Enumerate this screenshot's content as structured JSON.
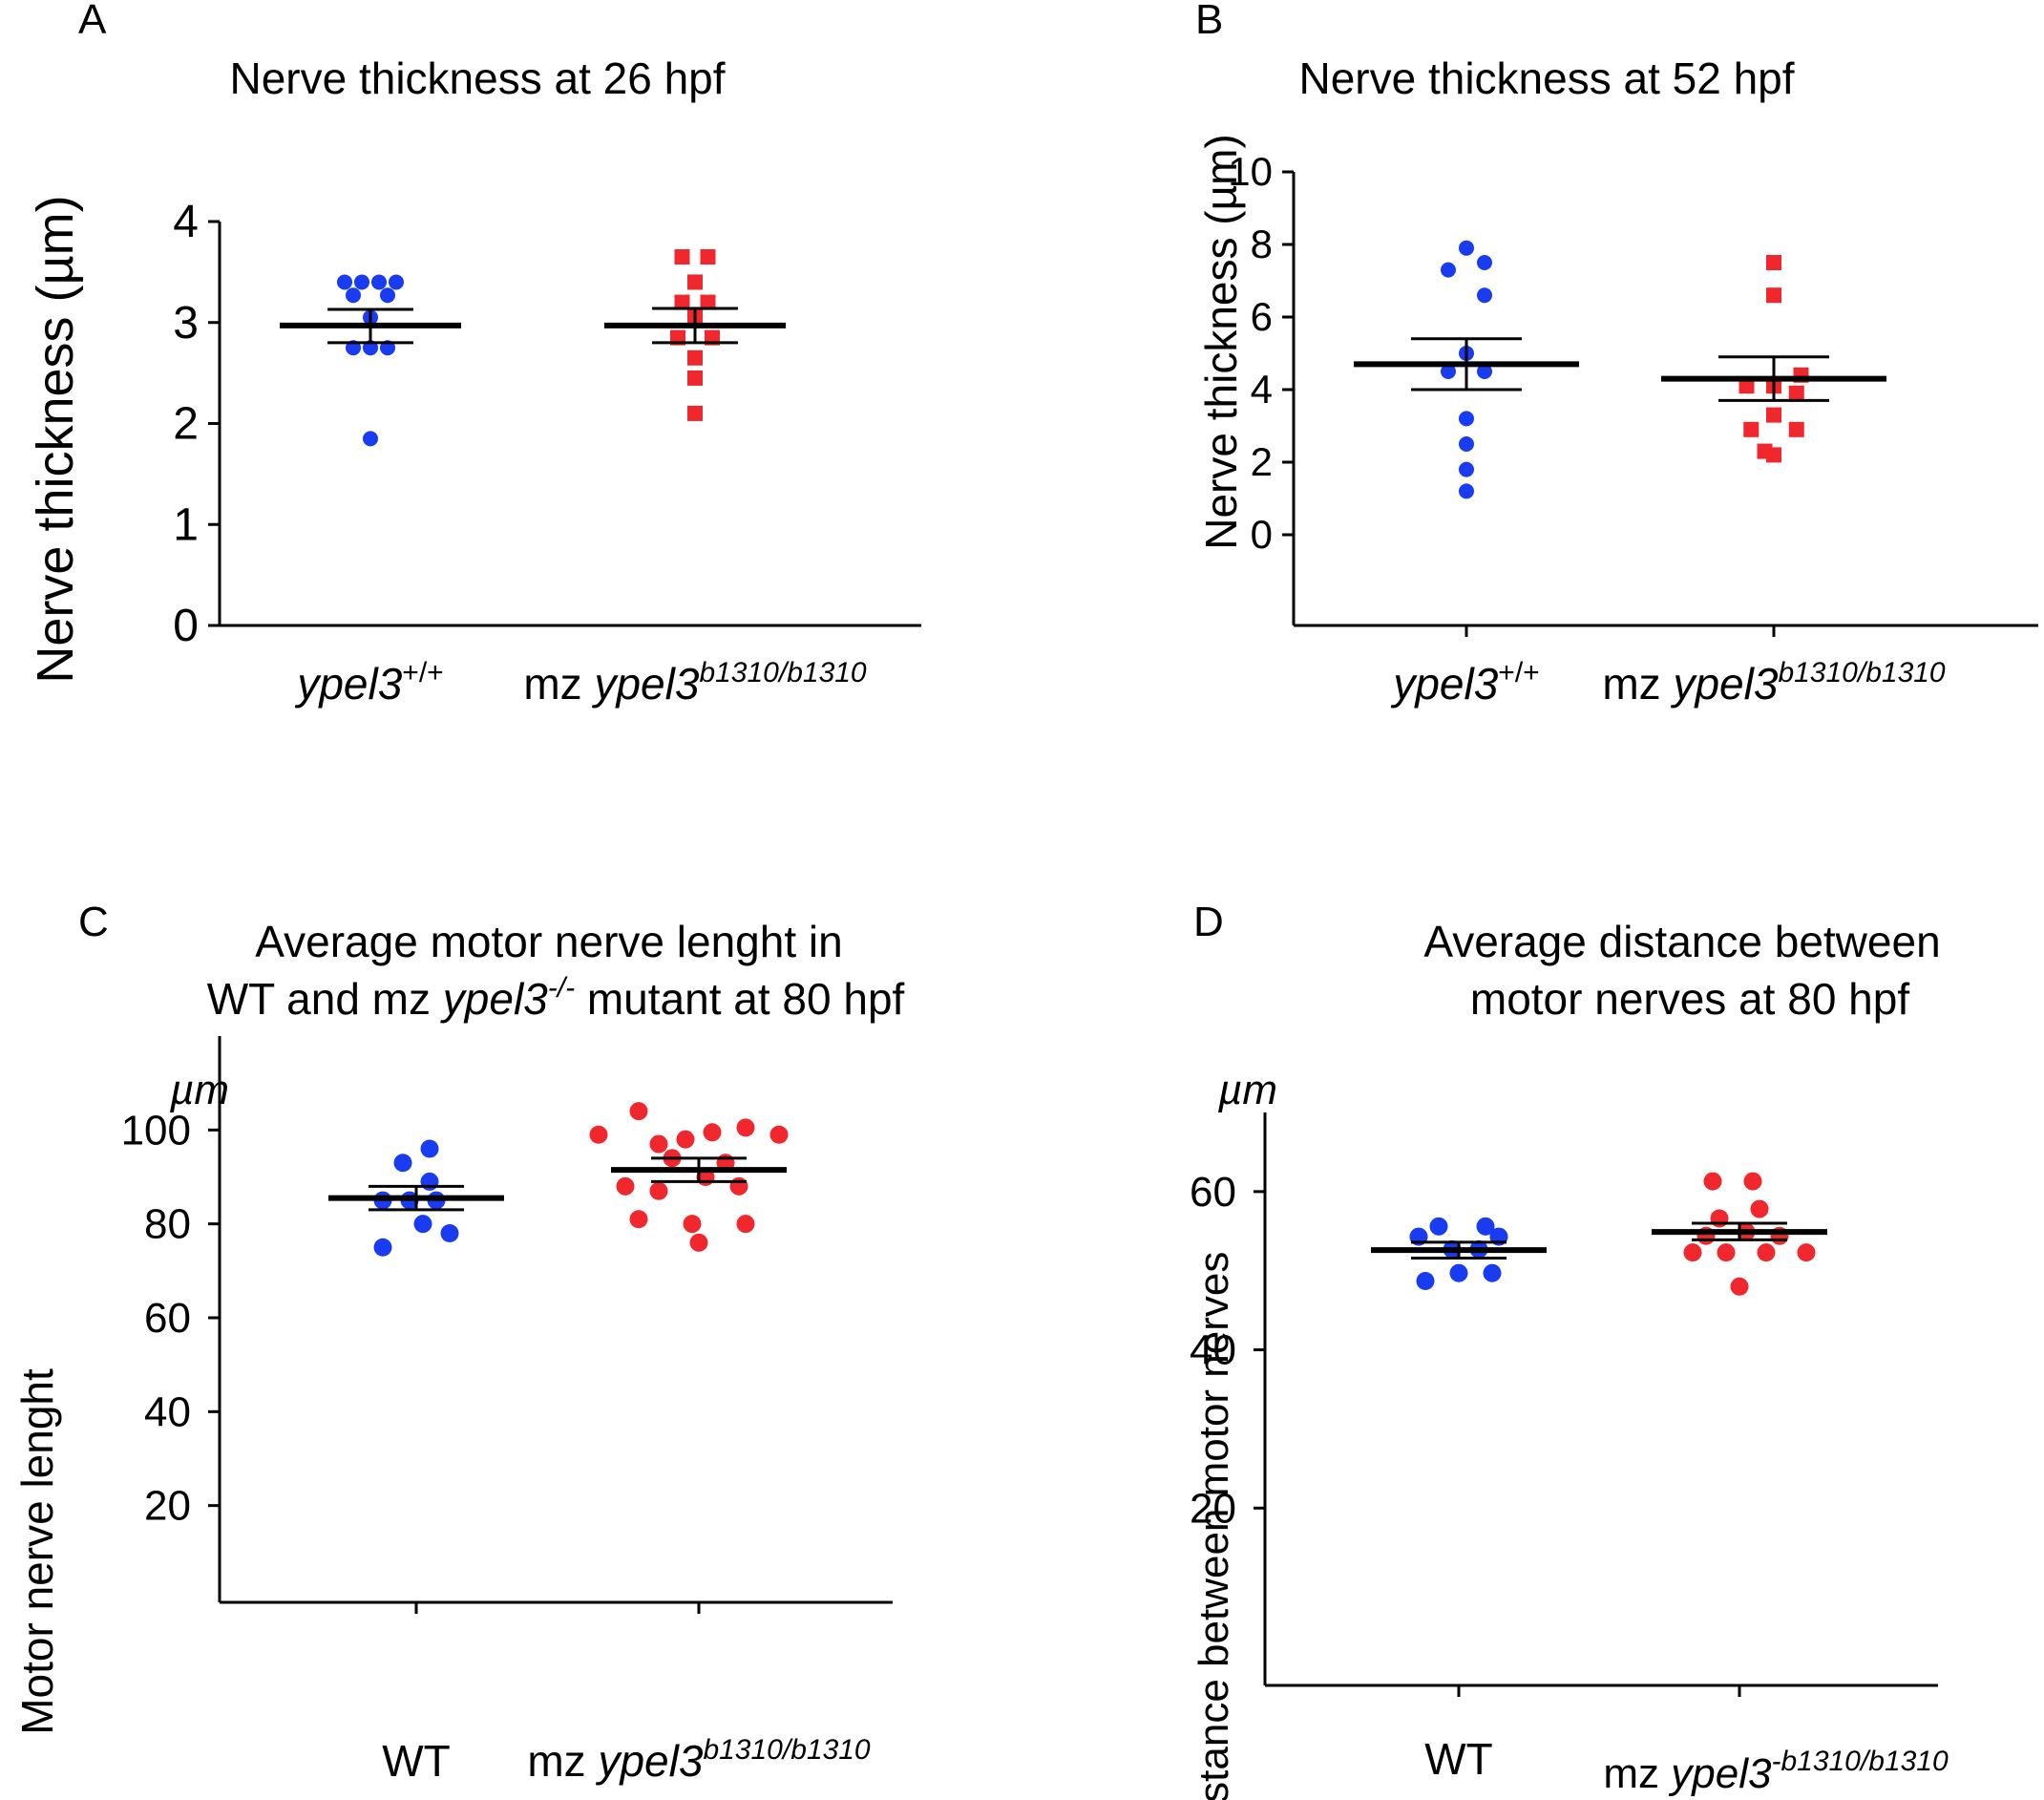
{
  "chart_data": [
    {
      "panel": "A",
      "type": "scatter",
      "title": "Nerve thickness at 26 hpf",
      "ylabel": "Nerve thickness (µm)",
      "xlabel": "",
      "ylim": [
        0,
        4
      ],
      "yticks": [
        0,
        1,
        2,
        3,
        4
      ],
      "categories": [
        {
          "gene": "ypel3",
          "sup": "+/+",
          "prefix": ""
        },
        {
          "gene": "ypel3",
          "sup": "b1310/b1310",
          "prefix": "mz "
        }
      ],
      "series": [
        {
          "color": "#1a3cf0",
          "marker": "circle",
          "points": [
            [
              -0.3,
              3.4
            ],
            [
              -0.1,
              3.4
            ],
            [
              0.1,
              3.4
            ],
            [
              0.3,
              3.4
            ],
            [
              -0.2,
              3.27
            ],
            [
              0.2,
              3.27
            ],
            [
              0.0,
              3.05
            ],
            [
              -0.2,
              2.75
            ],
            [
              0.0,
              2.75
            ],
            [
              0.2,
              2.75
            ],
            [
              0.0,
              1.85
            ]
          ],
          "mean": 2.97,
          "sem_low": 2.8,
          "sem_high": 3.13
        },
        {
          "color": "#f0282d",
          "marker": "square",
          "points": [
            [
              -0.15,
              3.65
            ],
            [
              0.15,
              3.65
            ],
            [
              0.0,
              3.4
            ],
            [
              -0.15,
              3.2
            ],
            [
              0.15,
              3.2
            ],
            [
              0.0,
              3.05
            ],
            [
              -0.2,
              2.85
            ],
            [
              0.2,
              2.85
            ],
            [
              0.0,
              2.65
            ],
            [
              0.0,
              2.45
            ],
            [
              0.0,
              2.1
            ]
          ],
          "mean": 2.97,
          "sem_low": 2.8,
          "sem_high": 3.14
        }
      ]
    },
    {
      "panel": "B",
      "type": "scatter",
      "title": "Nerve thickness at 52 hpf",
      "ylabel": "Nerve thickness (µm)",
      "xlabel": "",
      "ylim": [
        0,
        10
      ],
      "yticks": [
        0,
        2,
        4,
        6,
        8,
        10
      ],
      "categories": [
        {
          "gene": "ypel3",
          "sup": "+/+",
          "prefix": ""
        },
        {
          "gene": "ypel3",
          "sup": "b1310/b1310",
          "prefix": "mz "
        }
      ],
      "series": [
        {
          "color": "#1a3cf0",
          "marker": "circle",
          "points": [
            [
              0.0,
              7.9
            ],
            [
              0.2,
              7.5
            ],
            [
              -0.2,
              7.3
            ],
            [
              0.2,
              6.6
            ],
            [
              0.0,
              5.0
            ],
            [
              -0.2,
              4.5
            ],
            [
              0.2,
              4.5
            ],
            [
              0.0,
              3.2
            ],
            [
              0.0,
              2.5
            ],
            [
              0.0,
              1.8
            ],
            [
              0.0,
              1.2
            ]
          ],
          "mean": 4.7,
          "sem_low": 4.0,
          "sem_high": 5.4
        },
        {
          "color": "#f0282d",
          "marker": "square",
          "points": [
            [
              0.0,
              7.5
            ],
            [
              0.0,
              6.6
            ],
            [
              0.3,
              4.4
            ],
            [
              -0.3,
              4.1
            ],
            [
              0.0,
              4.1
            ],
            [
              0.25,
              3.9
            ],
            [
              0.0,
              3.3
            ],
            [
              -0.25,
              2.9
            ],
            [
              0.25,
              2.9
            ],
            [
              -0.1,
              2.3
            ],
            [
              0.0,
              2.2
            ]
          ],
          "mean": 4.3,
          "sem_low": 3.7,
          "sem_high": 4.9
        }
      ]
    },
    {
      "panel": "C",
      "type": "scatter",
      "title_line1": "Average motor nerve lenght in",
      "title_line2_pre": "WT and mz ",
      "title_line2_gene": "ypel3",
      "title_line2_sup": "-/-",
      "title_line2_post": " mutant at 80 hpf",
      "ylabel": "Motor nerve lenght",
      "unit": "µm",
      "ylim": [
        0,
        120
      ],
      "yticks": [
        20,
        40,
        60,
        80,
        100
      ],
      "categories": [
        {
          "plain": "WT"
        },
        {
          "gene": "ypel3",
          "sup": "b1310/b1310",
          "prefix": "mz "
        }
      ],
      "series": [
        {
          "color": "#1a3cf0",
          "marker": "circle",
          "points": [
            [
              0.1,
              96
            ],
            [
              -0.1,
              93
            ],
            [
              0.1,
              89
            ],
            [
              -0.25,
              85
            ],
            [
              -0.05,
              85
            ],
            [
              0.15,
              85
            ],
            [
              0.05,
              80
            ],
            [
              -0.25,
              75
            ],
            [
              0.25,
              78
            ]
          ],
          "mean": 85.5,
          "sem_low": 83,
          "sem_high": 88
        },
        {
          "color": "#f0282d",
          "marker": "circle",
          "points": [
            [
              -0.45,
              104
            ],
            [
              -0.75,
              99
            ],
            [
              -0.3,
              97
            ],
            [
              -0.1,
              98
            ],
            [
              0.1,
              99.5
            ],
            [
              0.35,
              100.5
            ],
            [
              0.6,
              99
            ],
            [
              -0.2,
              94
            ],
            [
              0.2,
              93
            ],
            [
              -0.55,
              88
            ],
            [
              -0.3,
              87
            ],
            [
              0.05,
              90
            ],
            [
              0.3,
              88
            ],
            [
              -0.45,
              81
            ],
            [
              -0.05,
              80
            ],
            [
              0.35,
              80
            ],
            [
              0.0,
              76
            ]
          ],
          "mean": 91.5,
          "sem_low": 89,
          "sem_high": 94
        }
      ]
    },
    {
      "panel": "D",
      "type": "scatter",
      "title_line1": "Average distance between",
      "title_line2": "motor nerves at 80 hpf",
      "ylabel": "Distance between motor nerves",
      "unit": "µm",
      "ylim": [
        0,
        70
      ],
      "yticks": [
        20,
        40,
        60
      ],
      "categories": [
        {
          "plain": "WT"
        },
        {
          "gene": "ypel3",
          "sup": "-b1310/b1310",
          "prefix": "mz "
        }
      ],
      "series": [
        {
          "color": "#1a3cf0",
          "marker": "circle",
          "points": [
            [
              -0.15,
              55.6
            ],
            [
              0.2,
              55.6
            ],
            [
              -0.3,
              54.3
            ],
            [
              0.3,
              54.3
            ],
            [
              -0.05,
              52.7
            ],
            [
              0.15,
              52.7
            ],
            [
              -0.25,
              48.7
            ],
            [
              0.0,
              49.7
            ],
            [
              0.25,
              49.7
            ]
          ],
          "mean": 52.6,
          "sem_low": 51.6,
          "sem_high": 53.6
        },
        {
          "color": "#f0282d",
          "marker": "circle",
          "points": [
            [
              -0.2,
              61.3
            ],
            [
              0.1,
              61.3
            ],
            [
              0.15,
              57.8
            ],
            [
              -0.15,
              56.6
            ],
            [
              -0.25,
              54.4
            ],
            [
              0.05,
              54.9
            ],
            [
              0.3,
              54.4
            ],
            [
              -0.35,
              52.3
            ],
            [
              -0.1,
              52.3
            ],
            [
              0.2,
              52.3
            ],
            [
              0.5,
              52.3
            ],
            [
              0.0,
              48.0
            ]
          ],
          "mean": 54.9,
          "sem_low": 53.9,
          "sem_high": 56.0
        }
      ]
    }
  ]
}
